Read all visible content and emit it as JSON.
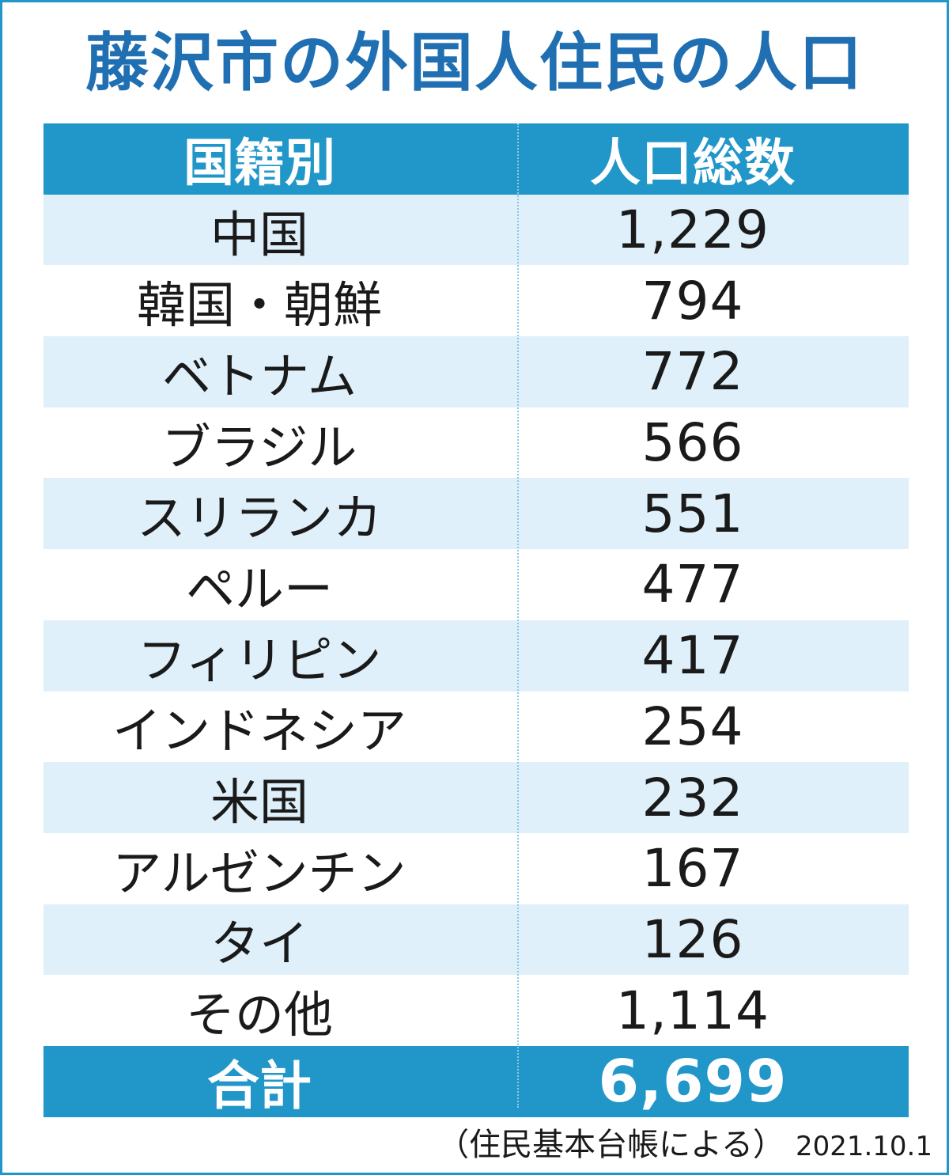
{
  "title": "藤沢市の外国人住民の人口",
  "chart_data": {
    "type": "table",
    "columns": [
      "国籍別",
      "人口総数"
    ],
    "rows": [
      {
        "country": "中国",
        "population": "1,229"
      },
      {
        "country": "韓国・朝鮮",
        "population": "794"
      },
      {
        "country": "ベトナム",
        "population": "772"
      },
      {
        "country": "ブラジル",
        "population": "566"
      },
      {
        "country": "スリランカ",
        "population": "551"
      },
      {
        "country": "ペルー",
        "population": "477"
      },
      {
        "country": "フィリピン",
        "population": "417"
      },
      {
        "country": "インドネシア",
        "population": "254"
      },
      {
        "country": "米国",
        "population": "232"
      },
      {
        "country": "アルゼンチン",
        "population": "167"
      },
      {
        "country": "タイ",
        "population": "126"
      },
      {
        "country": "その他",
        "population": "1,114"
      }
    ],
    "total": {
      "label": "合計",
      "population": "6,699"
    }
  },
  "colors": {
    "accent": "#2196c9",
    "title": "#1f6fb2",
    "stripe": "#dff0fa"
  },
  "footer": {
    "source": "（住民基本台帳による）",
    "date": "2021.10.1"
  }
}
